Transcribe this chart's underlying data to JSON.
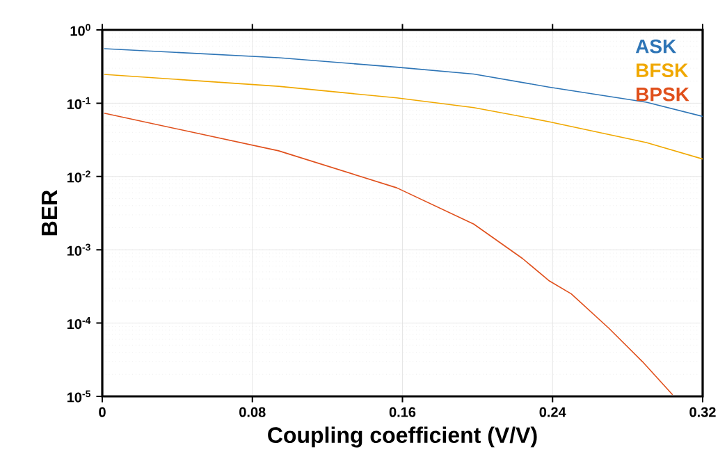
{
  "chart_data": {
    "type": "line",
    "xlabel": "Coupling coefficient (V/V)",
    "ylabel": "BER",
    "log": "y",
    "grid": true,
    "legend": "top right",
    "marker": "none",
    "line_style": "solid",
    "xlim": [
      0,
      0.32
    ],
    "xticks": [
      0,
      0.08,
      0.16,
      0.24,
      0.32
    ],
    "ylim": [
      1e-05,
      1
    ],
    "yticks": [
      {
        "value": 1e-05,
        "label": "10$^{-5}$"
      },
      {
        "value": 0.0001,
        "label": "10$^{-4}$"
      },
      {
        "value": 0.001,
        "label": "10$^{-3}$"
      },
      {
        "value": 0.01,
        "label": "10$^{-2}$"
      },
      {
        "value": 0.1,
        "label": "10$^{-1}$"
      },
      {
        "value": 1,
        "label": "10$^{0}$"
      }
    ],
    "series": [
      {
        "name": "ASK",
        "color": "#2e75b6",
        "x": [
          0.001,
          0.094,
          0.157,
          0.198,
          0.238,
          0.29,
          0.32
        ],
        "values": [
          0.555,
          0.417,
          0.31,
          0.25,
          0.166,
          0.103,
          0.066
        ]
      },
      {
        "name": "BFSK",
        "color": "#f0a800",
        "x": [
          0.001,
          0.094,
          0.157,
          0.198,
          0.238,
          0.29,
          0.32
        ],
        "values": [
          0.247,
          0.17,
          0.118,
          0.087,
          0.056,
          0.029,
          0.0173
        ]
      },
      {
        "name": "BPSK",
        "color": "#e0501c",
        "x": [
          0.001,
          0.094,
          0.157,
          0.198,
          0.224,
          0.238,
          0.25,
          0.27,
          0.288,
          0.304
        ],
        "values": [
          0.073,
          0.0224,
          0.007,
          0.00224,
          0.00076,
          0.00038,
          0.00025,
          8.5e-05,
          2.96e-05,
          1.05e-05
        ]
      }
    ]
  }
}
